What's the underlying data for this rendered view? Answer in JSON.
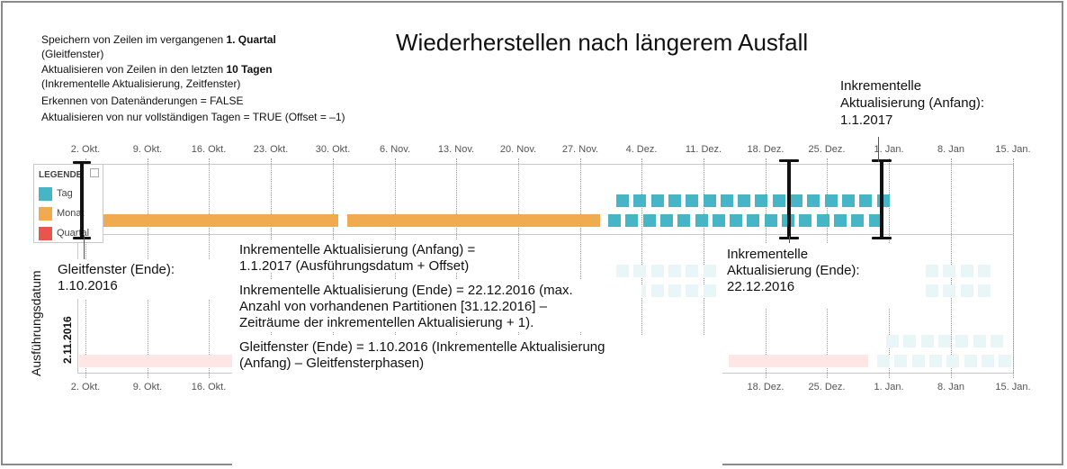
{
  "title": "Wiederherstellen nach längerem Ausfall",
  "config": {
    "line1_prefix": "Speichern von Zeilen im vergangenen ",
    "line1_bold": "1. Quartal",
    "line2": "(Gleitfenster)",
    "line3_prefix": "Aktualisieren von Zeilen in den letzten ",
    "line3_bold": "10 Tagen",
    "line4": "(Inkrementelle Aktualisierung, Zeitfenster)",
    "line5": "Erkennen von Datenänderungen = FALSE",
    "line6": "Aktualisieren von nur vollständigen Tagen = TRUE (Offset = –1)"
  },
  "axis_ticks": [
    "2. Okt.",
    "9. Okt.",
    "16. Okt.",
    "23. Okt.",
    "30. Okt.",
    "6. Nov.",
    "13. Nov.",
    "20. Nov.",
    "27. Nov.",
    "4. Dez.",
    "11. Dez.",
    "18. Dez.",
    "25. Dez.",
    "1. Jan.",
    "8. Jan",
    "15. Jan."
  ],
  "legend": {
    "title": "LEGENDE",
    "items": [
      {
        "label": "Tag",
        "color": "#46b5c5"
      },
      {
        "label": "Monat",
        "color": "#f0aa4f"
      },
      {
        "label": "Quartal",
        "color": "#e8554a"
      }
    ]
  },
  "y_axis_label": "Ausführungsdatum",
  "row_date": "2.11.2016",
  "callouts": {
    "inc_start_top_1": "Inkrementelle",
    "inc_start_top_2": "Aktualisierung (Anfang):",
    "inc_start_top_3": "1.1.2017",
    "sliding_end_1": "Gleitfenster (Ende):",
    "sliding_end_2": "1.10.2016",
    "inc_end_1": "Inkrementelle",
    "inc_end_2": "Aktualisierung (Ende):",
    "inc_end_3": "22.12.2016",
    "formula1_1": "Inkrementelle Aktualisierung (Anfang) =",
    "formula1_2": "1.1.2017 (Ausführungsdatum + Offset)",
    "formula2_1": "Inkrementelle Aktualisierung (Ende) = 22.12.2016 (max.",
    "formula2_2": "Anzahl von vorhandenen Partitionen [31.12.2016] –",
    "formula2_3": "Zeiträume der inkrementellen Aktualisierung + 1).",
    "formula3_1": "Gleitfenster (Ende) = 1.10.2016 (Inkrementelle Aktualisierung",
    "formula3_2": "(Anfang) – Gleitfensterphasen)"
  }
}
